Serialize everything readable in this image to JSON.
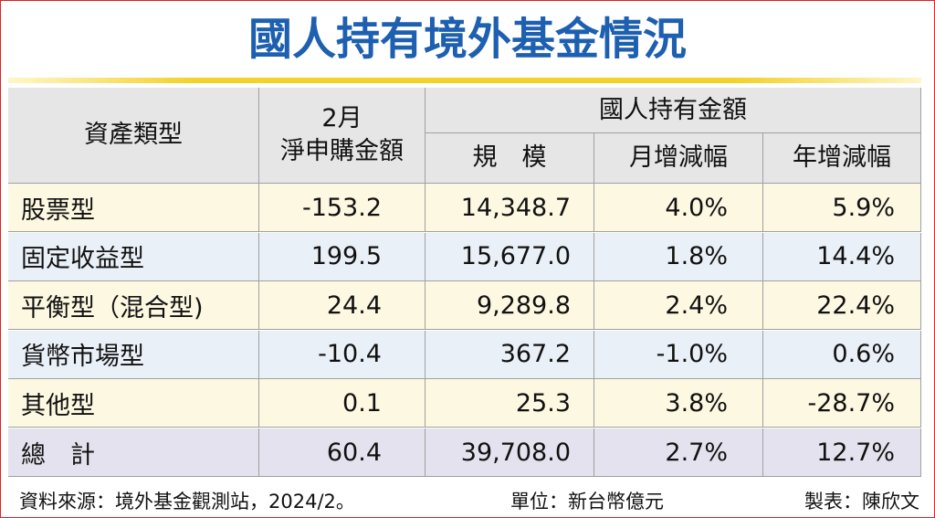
{
  "title": "國人持有境外基金情況",
  "table": {
    "header": {
      "asset_type": "資產類型",
      "net_purchase": [
        "2月",
        "淨申購金額"
      ],
      "holdings": "國人持有金額",
      "subcolumns": [
        "規　模",
        "月增減幅",
        "年增減幅"
      ]
    },
    "rows": [
      [
        "股票型",
        "-153.2",
        "14,348.7",
        "4.0%",
        "5.9%"
      ],
      [
        "固定收益型",
        "199.5",
        "15,677.0",
        "1.8%",
        "14.4%"
      ],
      [
        "平衡型（混合型)",
        "24.4",
        "9,289.8",
        "2.4%",
        "22.4%"
      ],
      [
        "貨幣市場型",
        "-10.4",
        "367.2",
        "-1.0%",
        "0.6%"
      ],
      [
        "其他型",
        "0.1",
        "25.3",
        "3.8%",
        "-28.7%"
      ]
    ],
    "total": [
      "總　計",
      "60.4",
      "39,708.0",
      "2.7%",
      "12.7%"
    ]
  },
  "footer": {
    "source": "資料來源：境外基金觀測站，2024/2。",
    "unit": "單位：新台幣億元",
    "author": "製表：陳欣文"
  }
}
